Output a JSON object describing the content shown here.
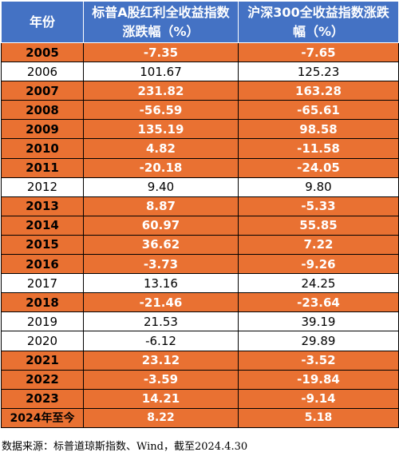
{
  "table": {
    "headers": {
      "year": "年份",
      "sp_a_div": "标普A股红利全收益指数涨跌幅（%）",
      "hs300": "沪深300全收益指数涨跌幅（%）"
    },
    "rows": [
      {
        "year": "2005",
        "sp_a_div": "-7.35",
        "hs300": "-7.65",
        "highlight": true
      },
      {
        "year": "2006",
        "sp_a_div": "101.67",
        "hs300": "125.23",
        "highlight": false
      },
      {
        "year": "2007",
        "sp_a_div": "231.82",
        "hs300": "163.28",
        "highlight": true
      },
      {
        "year": "2008",
        "sp_a_div": "-56.59",
        "hs300": "-65.61",
        "highlight": true
      },
      {
        "year": "2009",
        "sp_a_div": "135.19",
        "hs300": "98.58",
        "highlight": true
      },
      {
        "year": "2010",
        "sp_a_div": "4.82",
        "hs300": "-11.58",
        "highlight": true
      },
      {
        "year": "2011",
        "sp_a_div": "-20.18",
        "hs300": "-24.05",
        "highlight": true
      },
      {
        "year": "2012",
        "sp_a_div": "9.40",
        "hs300": "9.80",
        "highlight": false
      },
      {
        "year": "2013",
        "sp_a_div": "8.87",
        "hs300": "-5.33",
        "highlight": true
      },
      {
        "year": "2014",
        "sp_a_div": "60.97",
        "hs300": "55.85",
        "highlight": true
      },
      {
        "year": "2015",
        "sp_a_div": "36.62",
        "hs300": "7.22",
        "highlight": true
      },
      {
        "year": "2016",
        "sp_a_div": "-3.73",
        "hs300": "-9.26",
        "highlight": true
      },
      {
        "year": "2017",
        "sp_a_div": "13.16",
        "hs300": "24.25",
        "highlight": false
      },
      {
        "year": "2018",
        "sp_a_div": "-21.46",
        "hs300": "-23.64",
        "highlight": true
      },
      {
        "year": "2019",
        "sp_a_div": "21.53",
        "hs300": "39.19",
        "highlight": false
      },
      {
        "year": "2020",
        "sp_a_div": "-6.12",
        "hs300": "29.89",
        "highlight": false
      },
      {
        "year": "2021",
        "sp_a_div": "23.12",
        "hs300": "-3.52",
        "highlight": true
      },
      {
        "year": "2022",
        "sp_a_div": "-3.59",
        "hs300": "-19.84",
        "highlight": true
      },
      {
        "year": "2023",
        "sp_a_div": "14.21",
        "hs300": "-9.14",
        "highlight": true
      },
      {
        "year": "2024年至今",
        "sp_a_div": "8.22",
        "hs300": "5.18",
        "highlight": true
      }
    ]
  },
  "source_note": "数据来源：标普道琼斯指数、Wind，截至2024.4.30",
  "colors": {
    "header_bg": "#4472c4",
    "highlight_bg": "#e97132",
    "plain_bg": "#ffffff"
  }
}
